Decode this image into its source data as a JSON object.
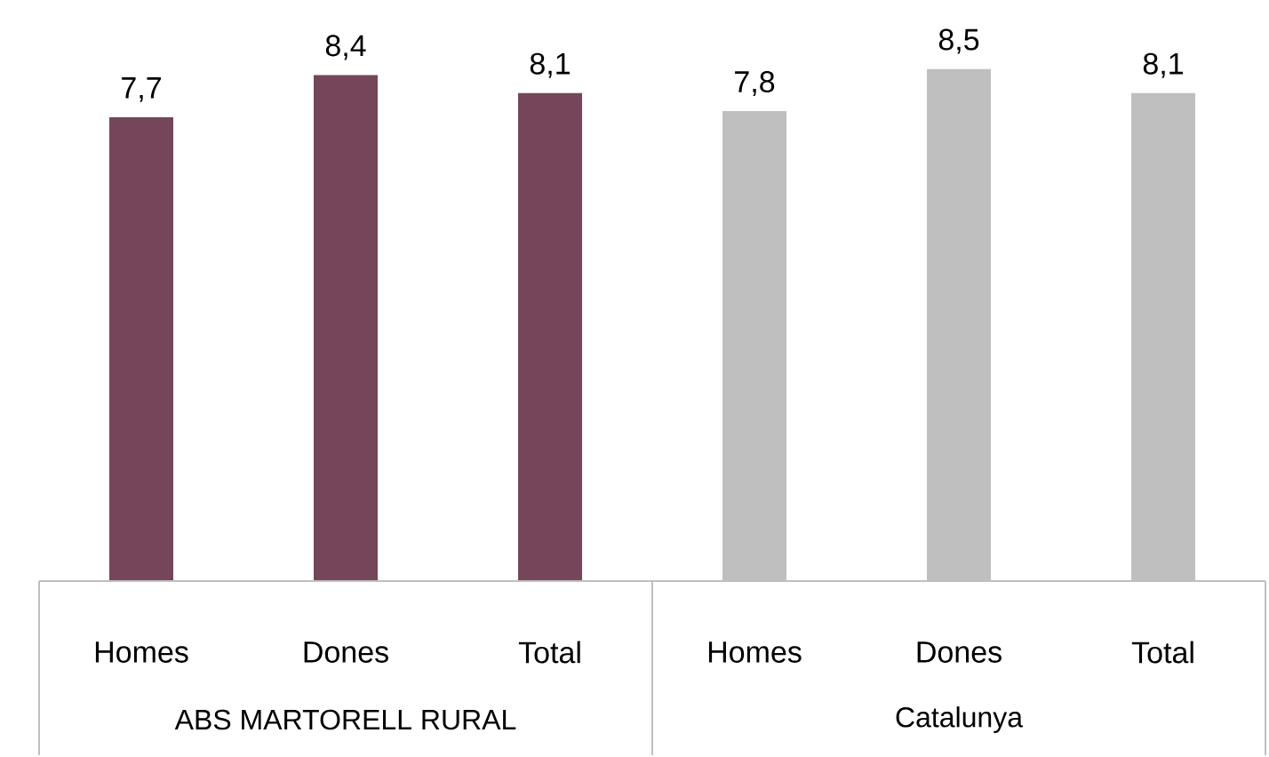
{
  "chart_data": {
    "type": "bar",
    "categories": [
      "Homes",
      "Dones",
      "Total",
      "Homes",
      "Dones",
      "Total"
    ],
    "values": [
      7.7,
      8.4,
      8.1,
      7.8,
      8.5,
      8.1
    ],
    "colors": [
      "#75465a",
      "#75465a",
      "#75465a",
      "#bfbfbf",
      "#bfbfbf",
      "#bfbfbf"
    ],
    "value_labels": [
      "7,7",
      "8,4",
      "8,1",
      "7,8",
      "8,5",
      "8,1"
    ],
    "annotations": [
      "ABS MARTORELL RURAL",
      "Catalunya"
    ]
  }
}
